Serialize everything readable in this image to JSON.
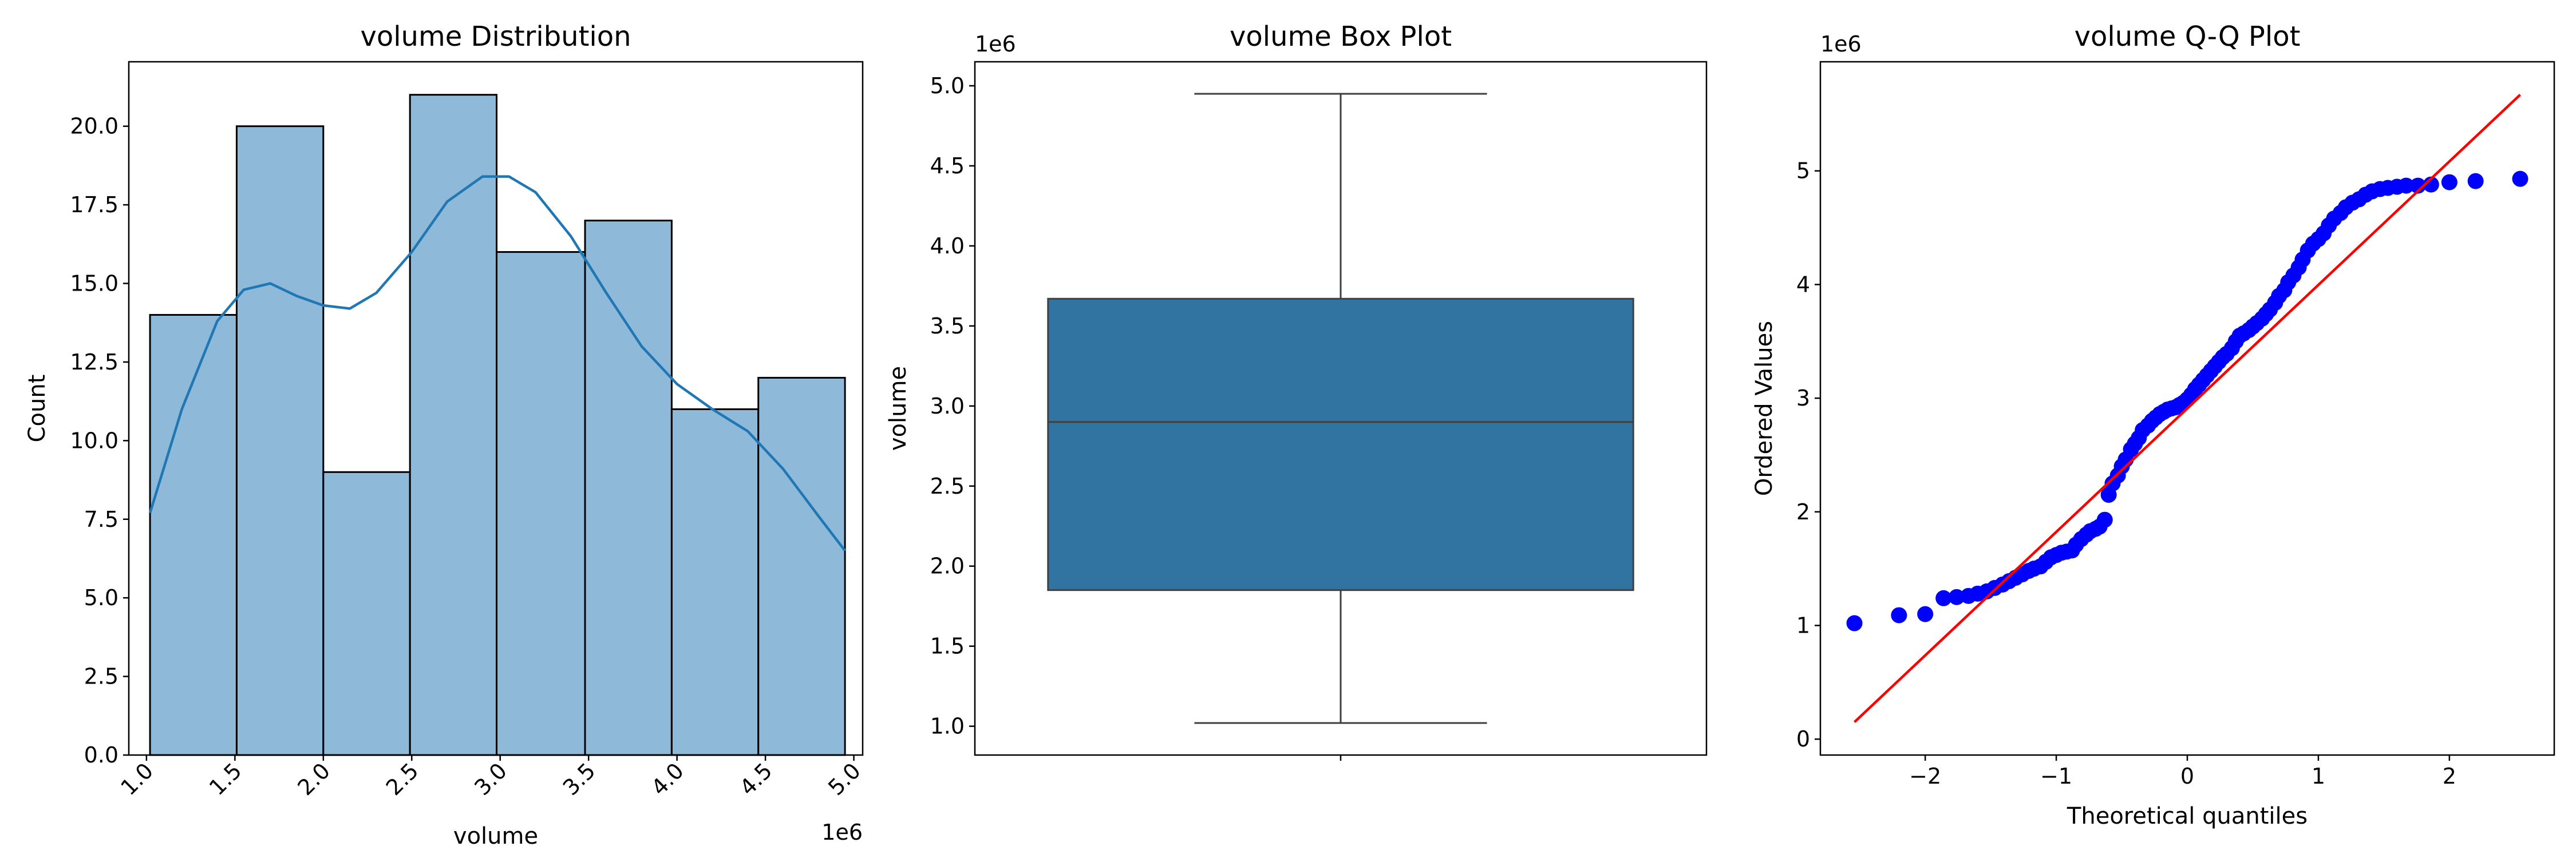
{
  "colors": {
    "hist_fill": "#8fb9d9",
    "kde_line": "#1f77b4",
    "box_fill": "#3274a1",
    "box_lines": "#3f3f3f",
    "qq_points": "#0000ff",
    "qq_line": "#ff0000"
  },
  "chart_data": [
    {
      "type": "bar",
      "title": "volume Distribution",
      "xlabel": "volume",
      "ylabel": "Count",
      "x_offset_label": "1e6",
      "bin_edges": [
        1.02,
        1.51,
        2.0,
        2.49,
        2.98,
        3.48,
        3.97,
        4.46,
        4.95
      ],
      "counts": [
        14,
        20,
        9,
        21,
        16,
        17,
        11,
        12
      ],
      "kde": {
        "x": [
          1.02,
          1.2,
          1.4,
          1.55,
          1.7,
          1.85,
          2.0,
          2.15,
          2.3,
          2.5,
          2.7,
          2.9,
          3.05,
          3.2,
          3.4,
          3.6,
          3.8,
          4.0,
          4.2,
          4.4,
          4.6,
          4.8,
          4.95
        ],
        "y": [
          7.7,
          11.0,
          13.8,
          14.8,
          15.0,
          14.6,
          14.3,
          14.2,
          14.7,
          16.0,
          17.6,
          18.4,
          18.4,
          17.9,
          16.5,
          14.7,
          13.0,
          11.8,
          11.0,
          10.3,
          9.1,
          7.6,
          6.5
        ]
      },
      "xlim": [
        0.9,
        5.05
      ],
      "ylim": [
        0,
        22.05
      ],
      "x_ticks": [
        1.0,
        1.5,
        2.0,
        2.5,
        3.0,
        3.5,
        4.0,
        4.5,
        5.0
      ],
      "x_tick_labels": [
        "1.0",
        "1.5",
        "2.0",
        "2.5",
        "3.0",
        "3.5",
        "4.0",
        "4.5",
        "5.0"
      ],
      "y_ticks": [
        0,
        2.5,
        5,
        7.5,
        10,
        12.5,
        15,
        17.5,
        20
      ],
      "y_tick_labels": [
        "0.0",
        "2.5",
        "5.0",
        "7.5",
        "10.0",
        "12.5",
        "15.0",
        "17.5",
        "20.0"
      ],
      "grid": false,
      "legend": "none"
    },
    {
      "type": "box",
      "title": "volume Box Plot",
      "ylabel": "volume",
      "y_offset_label": "1e6",
      "stats": {
        "min": 1.02,
        "q1": 1.85,
        "median": 2.9,
        "q3": 3.67,
        "max": 4.95
      },
      "ylim": [
        0.82,
        5.15
      ],
      "y_ticks": [
        1.0,
        1.5,
        2.0,
        2.5,
        3.0,
        3.5,
        4.0,
        4.5,
        5.0
      ],
      "y_tick_labels": [
        "1.0",
        "1.5",
        "2.0",
        "2.5",
        "3.0",
        "3.5",
        "4.0",
        "4.5",
        "5.0"
      ],
      "grid": false,
      "legend": "none"
    },
    {
      "type": "scatter",
      "title": "volume Q-Q Plot",
      "xlabel": "Theoretical quantiles",
      "ylabel": "Ordered Values",
      "y_offset_label": "1e6",
      "fit_line": {
        "x": [
          -2.54,
          2.54
        ],
        "y": [
          0.15,
          5.67
        ]
      },
      "points": {
        "x": [
          -2.54,
          -2.2,
          -2.0,
          -1.86,
          -1.76,
          -1.67,
          -1.6,
          -1.53,
          -1.47,
          -1.41,
          -1.36,
          -1.31,
          -1.26,
          -1.21,
          -1.17,
          -1.12,
          -1.08,
          -1.04,
          -1.0,
          -0.96,
          -0.92,
          -0.88,
          -0.85,
          -0.81,
          -0.77,
          -0.74,
          -0.7,
          -0.67,
          -0.63,
          -0.6,
          -0.57,
          -0.53,
          -0.5,
          -0.47,
          -0.43,
          -0.4,
          -0.37,
          -0.34,
          -0.3,
          -0.27,
          -0.24,
          -0.21,
          -0.18,
          -0.15,
          -0.12,
          -0.09,
          -0.06,
          -0.03,
          0.0,
          0.03,
          0.06,
          0.09,
          0.12,
          0.15,
          0.18,
          0.21,
          0.24,
          0.27,
          0.3,
          0.34,
          0.37,
          0.4,
          0.43,
          0.47,
          0.5,
          0.53,
          0.57,
          0.6,
          0.63,
          0.67,
          0.7,
          0.74,
          0.77,
          0.81,
          0.85,
          0.88,
          0.92,
          0.96,
          1.0,
          1.04,
          1.08,
          1.12,
          1.17,
          1.21,
          1.26,
          1.31,
          1.36,
          1.41,
          1.47,
          1.53,
          1.6,
          1.67,
          1.76,
          1.86,
          2.0,
          2.2,
          2.54
        ],
        "y": [
          1.02,
          1.09,
          1.1,
          1.24,
          1.25,
          1.26,
          1.28,
          1.3,
          1.33,
          1.36,
          1.39,
          1.42,
          1.45,
          1.48,
          1.5,
          1.52,
          1.56,
          1.6,
          1.62,
          1.64,
          1.65,
          1.66,
          1.71,
          1.76,
          1.8,
          1.83,
          1.85,
          1.87,
          1.93,
          2.15,
          2.25,
          2.32,
          2.4,
          2.46,
          2.55,
          2.6,
          2.65,
          2.72,
          2.76,
          2.8,
          2.83,
          2.86,
          2.88,
          2.9,
          2.91,
          2.92,
          2.94,
          2.96,
          2.99,
          3.03,
          3.08,
          3.12,
          3.16,
          3.2,
          3.24,
          3.28,
          3.32,
          3.36,
          3.39,
          3.44,
          3.5,
          3.55,
          3.57,
          3.6,
          3.63,
          3.66,
          3.7,
          3.74,
          3.78,
          3.84,
          3.9,
          3.95,
          4.02,
          4.08,
          4.15,
          4.22,
          4.3,
          4.36,
          4.4,
          4.45,
          4.52,
          4.58,
          4.63,
          4.68,
          4.72,
          4.75,
          4.79,
          4.82,
          4.84,
          4.85,
          4.86,
          4.87,
          4.87,
          4.88,
          4.9,
          4.91,
          4.93
        ]
      },
      "xlim": [
        -2.8,
        2.8
      ],
      "ylim": [
        -0.14,
        5.96
      ],
      "x_ticks": [
        -2,
        -1,
        0,
        1,
        2
      ],
      "x_tick_labels": [
        "−2",
        "−1",
        "0",
        "1",
        "2"
      ],
      "y_ticks": [
        0,
        1,
        2,
        3,
        4,
        5
      ],
      "y_tick_labels": [
        "0",
        "1",
        "2",
        "3",
        "4",
        "5"
      ],
      "grid": false,
      "legend": "none"
    }
  ]
}
